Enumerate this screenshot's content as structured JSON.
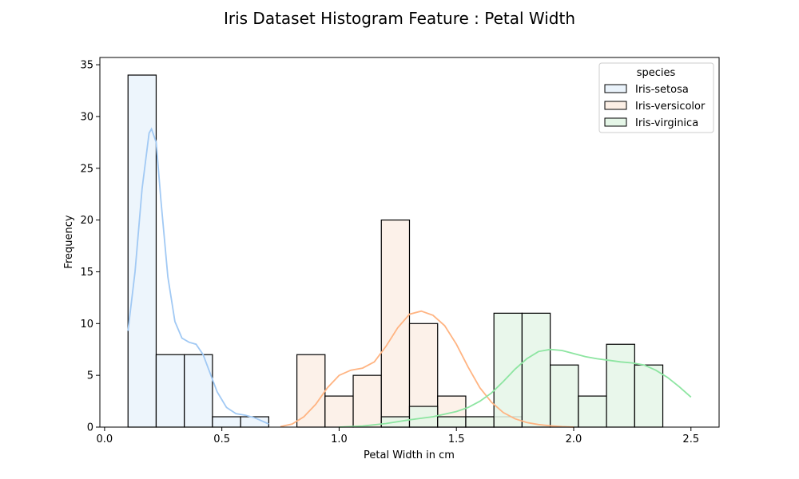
{
  "chart_data": {
    "type": "histogram",
    "title": "Iris Dataset Histogram Feature :  Petal Width",
    "xlabel": "Petal Width in cm",
    "ylabel": "Frequency",
    "xlim": [
      -0.02,
      2.62
    ],
    "ylim": [
      0,
      35.7
    ],
    "x_ticks": [
      0.0,
      0.5,
      1.0,
      1.5,
      2.0,
      2.5
    ],
    "x_tick_labels": [
      "0.0",
      "0.5",
      "1.0",
      "1.5",
      "2.0",
      "2.5"
    ],
    "y_ticks": [
      0,
      5,
      10,
      15,
      20,
      25,
      30,
      35
    ],
    "y_tick_labels": [
      "0",
      "5",
      "10",
      "15",
      "20",
      "25",
      "30",
      "35"
    ],
    "grid": false,
    "legend": {
      "title": "species",
      "placement": "top-right"
    },
    "bin_edges": [
      0.1,
      0.22,
      0.34,
      0.46,
      0.58,
      0.7,
      0.82,
      0.94,
      1.06,
      1.18,
      1.3,
      1.42,
      1.54,
      1.66,
      1.78,
      1.9,
      2.02,
      2.14,
      2.26,
      2.38,
      2.5
    ],
    "series": [
      {
        "name": "Iris-setosa",
        "fill": "#eaf3fb",
        "line": "#a1c9f4",
        "counts": [
          34,
          7,
          7,
          1,
          1,
          0,
          0,
          0,
          0,
          0,
          0,
          0,
          0,
          0,
          0,
          0,
          0,
          0,
          0,
          0
        ],
        "kde": [
          [
            0.1,
            9.3
          ],
          [
            0.13,
            15
          ],
          [
            0.16,
            23
          ],
          [
            0.19,
            28.4
          ],
          [
            0.2,
            28.8
          ],
          [
            0.22,
            27.5
          ],
          [
            0.24,
            22
          ],
          [
            0.27,
            14.5
          ],
          [
            0.3,
            10.2
          ],
          [
            0.33,
            8.6
          ],
          [
            0.36,
            8.2
          ],
          [
            0.39,
            8.0
          ],
          [
            0.42,
            7.0
          ],
          [
            0.45,
            5.2
          ],
          [
            0.48,
            3.4
          ],
          [
            0.52,
            1.9
          ],
          [
            0.56,
            1.3
          ],
          [
            0.6,
            1.15
          ],
          [
            0.64,
            0.9
          ],
          [
            0.68,
            0.5
          ],
          [
            0.7,
            0.3
          ]
        ]
      },
      {
        "name": "Iris-versicolor",
        "fill": "#fcefe5",
        "line": "#ffb482",
        "counts": [
          0,
          0,
          0,
          0,
          0,
          0,
          7,
          3,
          5,
          20,
          10,
          3,
          1,
          1,
          0,
          0,
          0,
          0,
          0,
          0
        ],
        "kde": [
          [
            0.75,
            0.05
          ],
          [
            0.8,
            0.3
          ],
          [
            0.85,
            1.0
          ],
          [
            0.9,
            2.2
          ],
          [
            0.95,
            3.8
          ],
          [
            1.0,
            5.0
          ],
          [
            1.05,
            5.5
          ],
          [
            1.1,
            5.7
          ],
          [
            1.15,
            6.3
          ],
          [
            1.2,
            7.8
          ],
          [
            1.25,
            9.6
          ],
          [
            1.3,
            10.9
          ],
          [
            1.35,
            11.2
          ],
          [
            1.4,
            10.8
          ],
          [
            1.45,
            9.8
          ],
          [
            1.5,
            8.0
          ],
          [
            1.55,
            5.8
          ],
          [
            1.6,
            3.8
          ],
          [
            1.65,
            2.4
          ],
          [
            1.7,
            1.4
          ],
          [
            1.75,
            0.8
          ],
          [
            1.8,
            0.45
          ],
          [
            1.85,
            0.25
          ],
          [
            1.9,
            0.12
          ],
          [
            1.95,
            0.05
          ],
          [
            2.0,
            0.0
          ]
        ]
      },
      {
        "name": "Iris-virginica",
        "fill": "#e5f6e7",
        "line": "#8de5a1",
        "counts": [
          0,
          0,
          0,
          0,
          0,
          0,
          0,
          0,
          0,
          1,
          2,
          1,
          1,
          11,
          11,
          6,
          3,
          8,
          6,
          0
        ],
        "kde": [
          [
            1.0,
            0.0
          ],
          [
            1.1,
            0.1
          ],
          [
            1.2,
            0.35
          ],
          [
            1.3,
            0.7
          ],
          [
            1.4,
            1.0
          ],
          [
            1.5,
            1.5
          ],
          [
            1.55,
            1.9
          ],
          [
            1.6,
            2.5
          ],
          [
            1.65,
            3.3
          ],
          [
            1.7,
            4.4
          ],
          [
            1.75,
            5.6
          ],
          [
            1.8,
            6.6
          ],
          [
            1.85,
            7.3
          ],
          [
            1.9,
            7.5
          ],
          [
            1.95,
            7.4
          ],
          [
            2.0,
            7.1
          ],
          [
            2.05,
            6.8
          ],
          [
            2.1,
            6.6
          ],
          [
            2.15,
            6.45
          ],
          [
            2.2,
            6.3
          ],
          [
            2.25,
            6.2
          ],
          [
            2.3,
            6.0
          ],
          [
            2.35,
            5.5
          ],
          [
            2.4,
            4.8
          ],
          [
            2.45,
            3.9
          ],
          [
            2.5,
            2.9
          ]
        ]
      }
    ]
  }
}
